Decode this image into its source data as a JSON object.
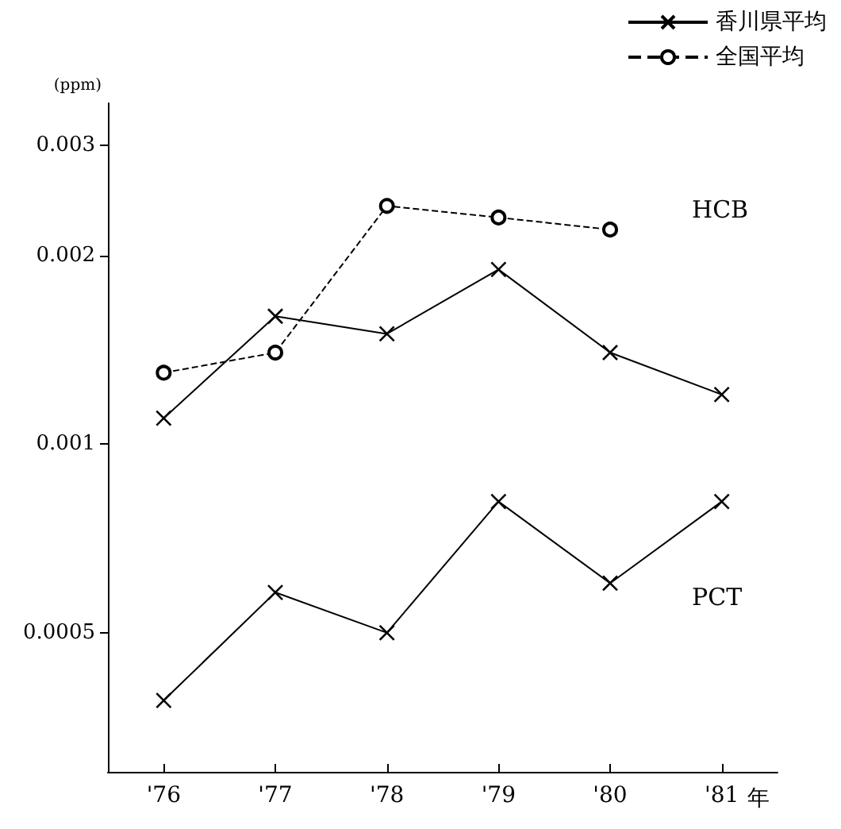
{
  "chart_data": {
    "type": "line",
    "ylabel": "(ppm)",
    "xlabel": "年",
    "categories": [
      "'76",
      "'77",
      "'78",
      "'79",
      "'80",
      "'81"
    ],
    "series": [
      {
        "name": "香川県平均",
        "color": "#000000",
        "marker": "cross",
        "line_style": "solid",
        "values": [
          0.0011,
          0.0016,
          0.0015,
          0.0019,
          0.0014,
          0.0012
        ]
      },
      {
        "name": "全国平均",
        "color": "#000000",
        "marker": "circle",
        "line_style": "dashed",
        "values": [
          0.0013,
          0.0014,
          0.0024,
          0.0023,
          0.0022,
          null
        ]
      },
      {
        "color": "#000000",
        "marker": "cross",
        "line_style": "solid",
        "values": [
          0.00039,
          0.00058,
          0.0005,
          0.00081,
          0.0006,
          0.00081
        ]
      }
    ],
    "log": "y",
    "ylim": [
      0.0003,
      0.0035
    ],
    "yticks": [
      0.0005,
      0.001,
      0.002,
      0.003
    ],
    "grid": false,
    "legend": "top right",
    "annotations": [
      "HCB",
      "PCT"
    ]
  }
}
